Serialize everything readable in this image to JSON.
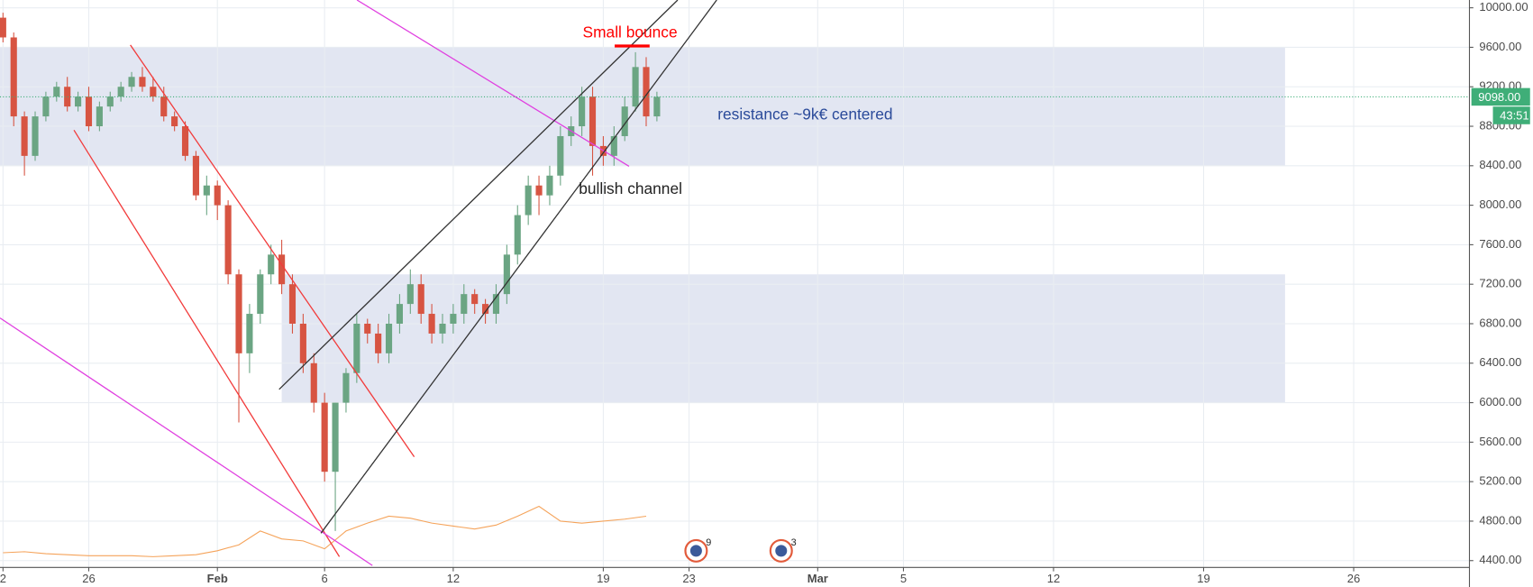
{
  "chart_data": {
    "type": "candlestick",
    "x": [
      21,
      21.5,
      22,
      22.5,
      23,
      23.5,
      24,
      24.5,
      25,
      25.5,
      26,
      26.5,
      27,
      27.5,
      28,
      28.5,
      29,
      29.5,
      30,
      30.5,
      31,
      31.5,
      32,
      32.5,
      33,
      33.5,
      34,
      34.5,
      35,
      35.5,
      36,
      36.5,
      37,
      37.5,
      38,
      38.5,
      39,
      39.5,
      40,
      40.5,
      41,
      41.5,
      42,
      42.5,
      43,
      43.5,
      44,
      44.5,
      45,
      45.5,
      46,
      46.5,
      47,
      47.5,
      48,
      48.5,
      49,
      49.5,
      50,
      50.5,
      51,
      51.5
    ],
    "open": [
      9900,
      9700,
      8900,
      8500,
      8900,
      9100,
      9200,
      9000,
      9100,
      8800,
      9000,
      9100,
      9200,
      9300,
      9200,
      9100,
      8900,
      8800,
      8500,
      8100,
      8200,
      8000,
      7300,
      6500,
      6900,
      7300,
      7500,
      7200,
      6800,
      6400,
      6000,
      5300,
      6000,
      6300,
      6800,
      6700,
      6500,
      6800,
      7000,
      7200,
      6900,
      6700,
      6800,
      6900,
      7100,
      7000,
      6900,
      7100,
      7500,
      7900,
      8200,
      8100,
      8300,
      8700,
      8800,
      9100,
      8600,
      8500,
      8700,
      9000,
      9400,
      8900
    ],
    "high": [
      9950,
      9750,
      8950,
      8950,
      9150,
      9250,
      9300,
      9150,
      9200,
      9050,
      9150,
      9250,
      9350,
      9400,
      9300,
      9200,
      8950,
      8850,
      8550,
      8300,
      8250,
      8050,
      7350,
      7000,
      7350,
      7600,
      7650,
      7300,
      6900,
      6500,
      6100,
      6000,
      6350,
      6900,
      6850,
      6800,
      6900,
      7100,
      7350,
      7300,
      7000,
      6900,
      7000,
      7200,
      7150,
      7050,
      7200,
      7600,
      8000,
      8300,
      8300,
      8400,
      8800,
      8900,
      9200,
      9200,
      8700,
      8800,
      9100,
      9550,
      9500,
      9150
    ],
    "low": [
      9650,
      8800,
      8300,
      8450,
      8850,
      9050,
      8950,
      8950,
      8750,
      8750,
      8950,
      9050,
      9150,
      9150,
      9050,
      8850,
      8750,
      8450,
      8050,
      7900,
      7850,
      7200,
      5800,
      6300,
      6800,
      7200,
      7100,
      6700,
      6300,
      5900,
      5200,
      4700,
      5900,
      6200,
      6600,
      6400,
      6400,
      6700,
      6900,
      6800,
      6600,
      6600,
      6700,
      6800,
      6900,
      6800,
      6800,
      7000,
      7400,
      7800,
      7900,
      8000,
      8200,
      8600,
      8700,
      8300,
      8400,
      8400,
      8650,
      8950,
      8800,
      8850
    ],
    "close": [
      9700,
      8900,
      8500,
      8900,
      9100,
      9200,
      9000,
      9100,
      8800,
      9000,
      9100,
      9200,
      9300,
      9200,
      9100,
      8900,
      8800,
      8500,
      8100,
      8200,
      8000,
      7300,
      6500,
      6900,
      7300,
      7500,
      7200,
      6800,
      6400,
      6000,
      5300,
      6000,
      6300,
      6800,
      6700,
      6500,
      6800,
      7000,
      7200,
      6900,
      6700,
      6800,
      6900,
      7100,
      7000,
      6900,
      7100,
      7500,
      7900,
      8200,
      8100,
      8300,
      8700,
      8800,
      9100,
      8600,
      8500,
      8700,
      9000,
      9400,
      8900,
      9098
    ],
    "up_color": "#6ba583",
    "down_color": "#d75442",
    "xlim": [
      20.86,
      89.4
    ],
    "xticks": [
      {
        "value": 21,
        "label": "2"
      },
      {
        "value": 25,
        "label": "26"
      },
      {
        "value": 31,
        "label": "Feb"
      },
      {
        "value": 36,
        "label": "6"
      },
      {
        "value": 42,
        "label": "12"
      },
      {
        "value": 49,
        "label": "19"
      },
      {
        "value": 53,
        "label": "23"
      },
      {
        "value": 59,
        "label": "Mar"
      },
      {
        "value": 63,
        "label": "5"
      },
      {
        "value": 70,
        "label": "12"
      },
      {
        "value": 77,
        "label": "19"
      },
      {
        "value": 84,
        "label": "26"
      }
    ],
    "ylim": [
      4331,
      10079
    ],
    "yticks": [
      {
        "value": 4400,
        "label": "4400.00"
      },
      {
        "value": 4800,
        "label": "4800.00"
      },
      {
        "value": 5200,
        "label": "5200.00"
      },
      {
        "value": 5600,
        "label": "5600.00"
      },
      {
        "value": 6000,
        "label": "6000.00"
      },
      {
        "value": 6400,
        "label": "6400.00"
      },
      {
        "value": 6800,
        "label": "6800.00"
      },
      {
        "value": 7200,
        "label": "7200.00"
      },
      {
        "value": 7600,
        "label": "7600.00"
      },
      {
        "value": 8000,
        "label": "8000.00"
      },
      {
        "value": 8400,
        "label": "8400.00"
      },
      {
        "value": 8800,
        "label": "8800.00"
      },
      {
        "value": 9200,
        "label": "9200.00"
      },
      {
        "value": 9600,
        "label": "9600.00"
      },
      {
        "value": 10000,
        "label": "10000.00"
      }
    ],
    "grid": true,
    "zone_color": "#dfe3f1",
    "zones": [
      {
        "x": [
          20.86,
          80.8
        ],
        "low": 8400,
        "high": 9600
      },
      {
        "x": [
          34,
          80.8
        ],
        "low": 6000,
        "high": 7300
      }
    ],
    "trendlines": [
      {
        "color": "#f23b3b",
        "x": [
          26.94,
          40.18
        ],
        "y": [
          9623,
          5451
        ]
      },
      {
        "color": "#f23b3b",
        "x": [
          24.31,
          36.69
        ],
        "y": [
          8761,
          4440
        ]
      },
      {
        "color": "#e040e0",
        "x": [
          37.51,
          50.2
        ],
        "y": [
          10079,
          8394
        ]
      },
      {
        "color": "#e040e0",
        "x": [
          20.86,
          38.23
        ],
        "y": [
          6858,
          4351
        ]
      },
      {
        "color": "#333333",
        "x": [
          33.88,
          52.47
        ],
        "y": [
          6135,
          10079
        ]
      },
      {
        "color": "#333333",
        "x": [
          35.83,
          54.29
        ],
        "y": [
          4678,
          10079
        ]
      },
      {
        "color": "#ff0000",
        "x": [
          49.53,
          51.16
        ],
        "y": [
          9613,
          9613
        ]
      }
    ],
    "indicator": {
      "color": "#f5a35a",
      "x": [
        21,
        22,
        23,
        24,
        25,
        26,
        27,
        28,
        29,
        30,
        31,
        32,
        33,
        34,
        35,
        36,
        37,
        38,
        39,
        40,
        41,
        42,
        43,
        44,
        45,
        46,
        47,
        48,
        49,
        50,
        51
      ],
      "values": [
        4480,
        4490,
        4470,
        4460,
        4450,
        4450,
        4450,
        4440,
        4450,
        4460,
        4500,
        4560,
        4700,
        4620,
        4600,
        4520,
        4700,
        4780,
        4850,
        4830,
        4780,
        4750,
        4720,
        4760,
        4850,
        4950,
        4800,
        4780,
        4800,
        4820,
        4850
      ]
    },
    "current_price": {
      "value": 9098,
      "label": "9098.00",
      "color": "#3fae78"
    },
    "countdown": "43:51",
    "annotations": [
      {
        "text": "Small bounce",
        "color": "#ff0000"
      },
      {
        "text": "bullish channel",
        "color": "#222222"
      },
      {
        "text": "resistance ~9k€ centered",
        "color": "#2a4a9a"
      }
    ],
    "event_counts": [
      9,
      3
    ]
  }
}
